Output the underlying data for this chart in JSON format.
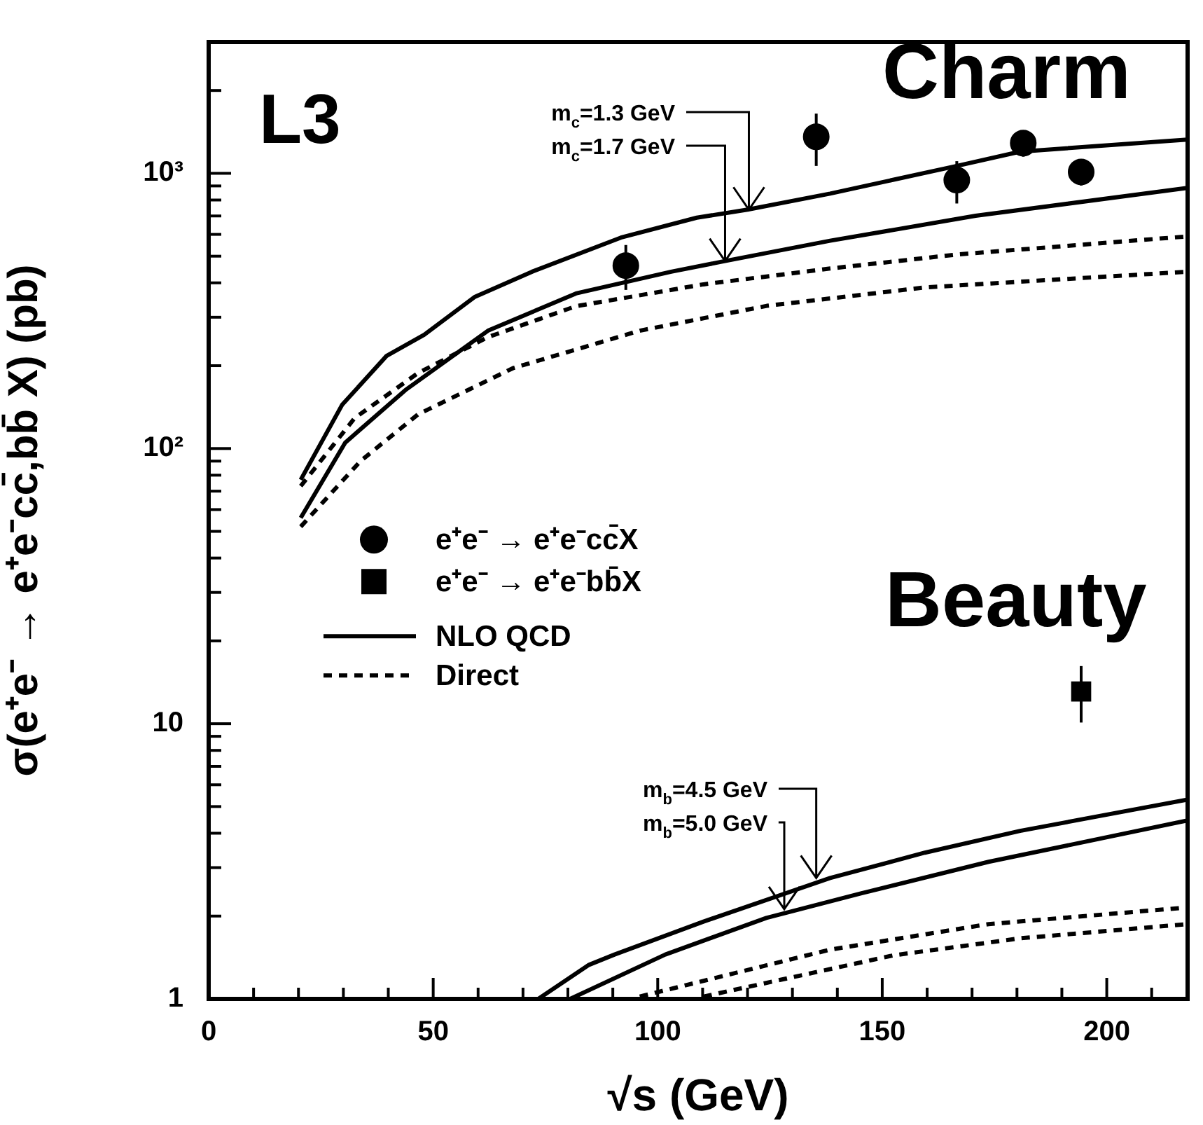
{
  "chart_data": {
    "type": "line",
    "xlabel": "√s (GeV)",
    "ylabel": "σ(e⁺e⁻ → e⁺e⁻cc̄,bb̄ X) (pb)",
    "log": "y",
    "legend": "left",
    "xlim": [
      0,
      218
    ],
    "ylim": [
      1,
      3000
    ],
    "xticks": [
      0,
      {
        "value": 10,
        "label": null
      },
      {
        "value": 20,
        "label": null
      },
      {
        "value": 30,
        "label": null
      },
      {
        "value": 40,
        "label": null
      },
      50,
      {
        "value": 60,
        "label": null
      },
      {
        "value": 70,
        "label": null
      },
      {
        "value": 80,
        "label": null
      },
      {
        "value": 90,
        "label": null
      },
      100,
      {
        "value": 110,
        "label": null
      },
      {
        "value": 120,
        "label": null
      },
      {
        "value": 130,
        "label": null
      },
      {
        "value": 140,
        "label": null
      },
      150,
      {
        "value": 160,
        "label": null
      },
      {
        "value": 170,
        "label": null
      },
      {
        "value": 180,
        "label": null
      },
      {
        "value": 190,
        "label": null
      },
      200,
      {
        "value": 210,
        "label": null
      }
    ],
    "yticks": [
      1,
      {
        "value": 2,
        "label": null
      },
      {
        "value": 3,
        "label": null
      },
      {
        "value": 4,
        "label": null
      },
      {
        "value": 5,
        "label": null
      },
      {
        "value": 6,
        "label": null
      },
      {
        "value": 7,
        "label": null
      },
      {
        "value": 8,
        "label": null
      },
      {
        "value": 9,
        "label": null
      },
      10,
      {
        "value": 20,
        "label": null
      },
      {
        "value": 30,
        "label": null
      },
      {
        "value": 40,
        "label": null
      },
      {
        "value": 50,
        "label": null
      },
      {
        "value": 60,
        "label": null
      },
      {
        "value": 70,
        "label": null
      },
      {
        "value": 80,
        "label": null
      },
      {
        "value": 90,
        "label": null
      },
      {
        "value": 100,
        "label": "10²"
      },
      {
        "value": 200,
        "label": null
      },
      {
        "value": 300,
        "label": null
      },
      {
        "value": 400,
        "label": null
      },
      {
        "value": 500,
        "label": null
      },
      {
        "value": 600,
        "label": null
      },
      {
        "value": 700,
        "label": null
      },
      {
        "value": 800,
        "label": null
      },
      {
        "value": 900,
        "label": null
      },
      {
        "value": 1000,
        "label": "10³"
      },
      {
        "value": 2000,
        "label": null
      }
    ],
    "annotations": [
      "L3",
      "Charm",
      "Beauty",
      {
        "text": "m$_{c}$=1.3 GeV",
        "x": 120.3,
        "y": 738
      },
      {
        "text": "m$_{c}$=1.7 GeV",
        "x": 115,
        "y": 480
      },
      {
        "text": "m$_{b}$=4.5 GeV",
        "x": 135.3,
        "y": 2.75
      },
      {
        "text": "m$_{b}$=5.0 GeV",
        "x": 128.2,
        "y": 2.12
      }
    ],
    "series": [
      {
        "name": "e⁺e⁻ → e⁺e⁻cc̄X",
        "type": "scatter",
        "marker": "circle",
        "color": "#000000",
        "x": [
          92.9,
          135.3,
          166.6,
          181.4,
          194.3
        ],
        "values": [
          462,
          1358,
          945,
          1288,
          1012
        ],
        "errors": [
          [
            377,
            549
          ],
          [
            1064,
            1648
          ],
          [
            777,
            1107
          ],
          [
            1149,
            1415
          ],
          [
            903,
            1119
          ]
        ]
      },
      {
        "name": "e⁺e⁻ → e⁺e⁻bb̄X",
        "type": "scatter",
        "marker": "square",
        "color": "#000000",
        "x": [
          194.3
        ],
        "values": [
          13.1
        ],
        "errors": [
          [
            10.1,
            16.2
          ]
        ]
      },
      {
        "name": "NLO QCD",
        "type": "line",
        "line_style": "solid",
        "color": "#000000",
        "x": [
          20.5,
          29.7,
          39.6,
          48,
          59.3,
          72,
          91.8,
          108.7,
          120,
          138.4,
          166.6,
          180.7,
          218
        ],
        "values": [
          77,
          144,
          217,
          259,
          356,
          439,
          584,
          690,
          738,
          844,
          1064,
          1199,
          1327
        ]
      },
      {
        "type": "line",
        "line_style": "solid",
        "color": "#000000",
        "x": [
          20.5,
          30.4,
          43.8,
          62.2,
          81.8,
          103,
          115,
          138.4,
          170.8,
          218
        ],
        "values": [
          56,
          105,
          163,
          268,
          366,
          439,
          480,
          569,
          701,
          885
        ]
      },
      {
        "name": "Direct",
        "type": "line",
        "line_style": "dotted",
        "color": "#000000",
        "x": [
          20.5,
          32.5,
          46.6,
          62.2,
          81.8,
          110.2,
          138.4,
          166.6,
          218
        ],
        "values": [
          73,
          129,
          188,
          254,
          329,
          395,
          451,
          507,
          590
        ]
      },
      {
        "type": "line",
        "line_style": "dotted",
        "color": "#000000",
        "x": [
          20.5,
          33.8,
          46.6,
          67.8,
          96,
          124.3,
          159.5,
          218
        ],
        "values": [
          52,
          90,
          133,
          196,
          268,
          330,
          385,
          439
        ]
      },
      {
        "type": "line",
        "line_style": "solid",
        "color": "#000000",
        "x": [
          73.4,
          84.7,
          90.4,
          110.2,
          138.4,
          159.5,
          180.7,
          218
        ],
        "values": [
          1,
          1.33,
          1.45,
          1.91,
          2.75,
          3.4,
          4.08,
          5.3
        ]
      },
      {
        "type": "line",
        "line_style": "solid",
        "color": "#000000",
        "x": [
          80.5,
          101.7,
          124.2,
          145.4,
          173.7,
          218
        ],
        "values": [
          1,
          1.45,
          1.97,
          2.42,
          3.15,
          4.45
        ]
      },
      {
        "type": "line",
        "line_style": "dotted",
        "color": "#000000",
        "x": [
          96,
          138.4,
          173.7,
          218
        ],
        "values": [
          1.02,
          1.51,
          1.87,
          2.15
        ]
      },
      {
        "type": "line",
        "line_style": "dotted",
        "color": "#000000",
        "x": [
          110.2,
          152.5,
          180.7,
          218
        ],
        "values": [
          1.02,
          1.44,
          1.66,
          1.87
        ]
      }
    ]
  }
}
